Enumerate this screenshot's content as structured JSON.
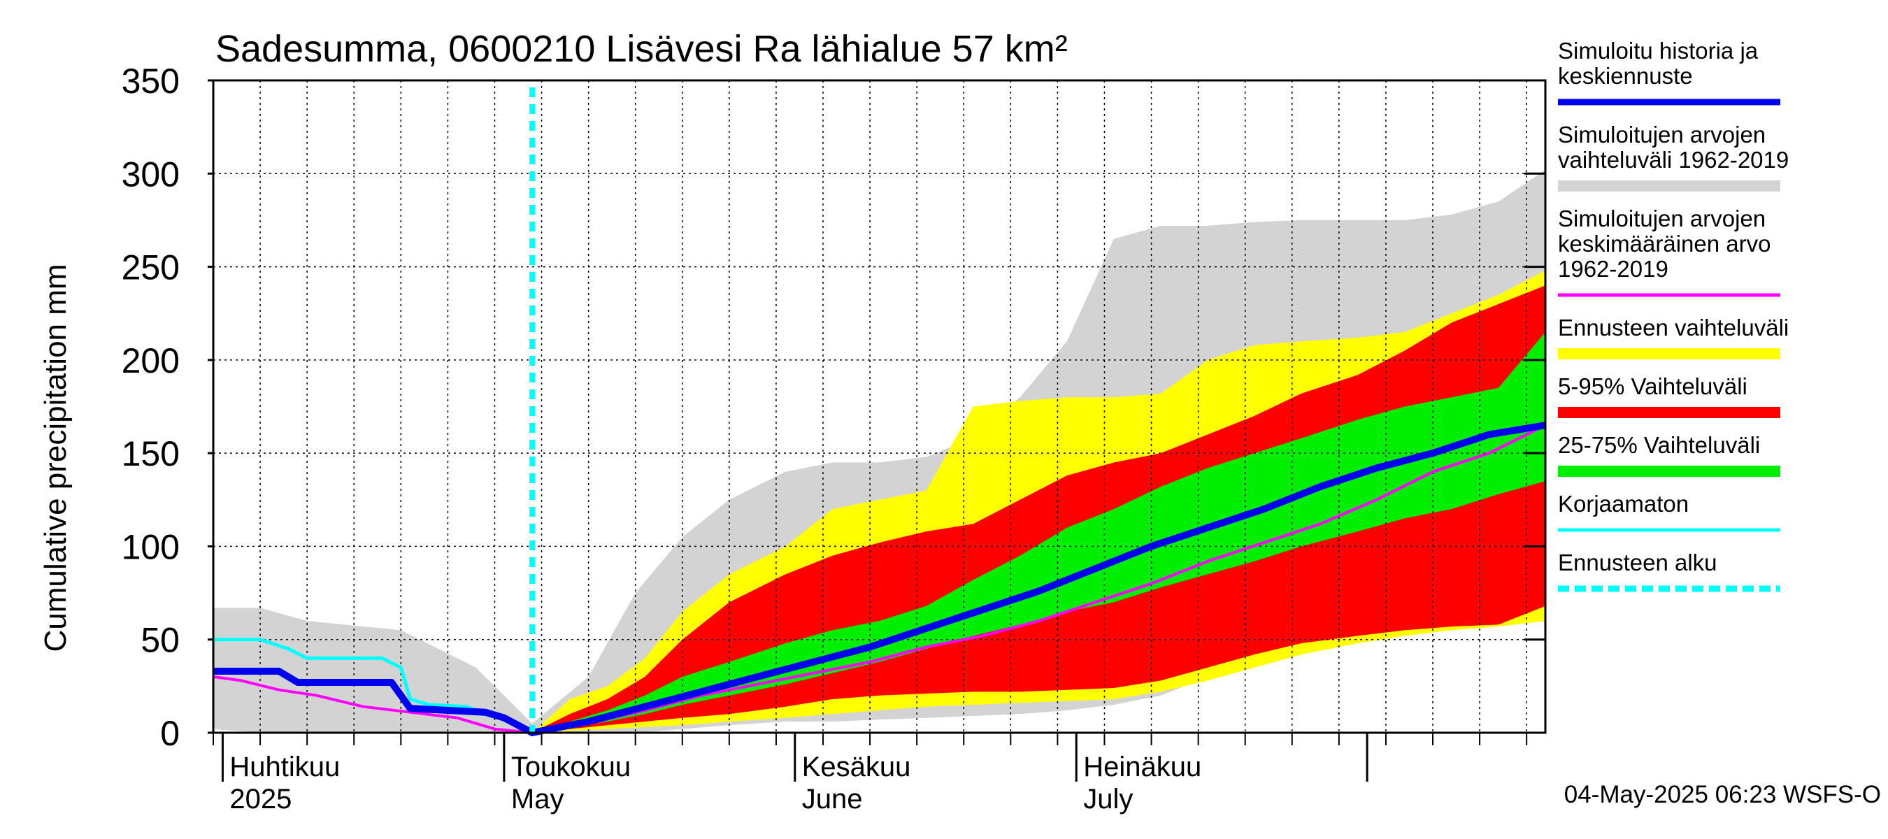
{
  "chart_data": {
    "type": "area",
    "title": "Sadesumma, 0600210 Lisävesi Ra lähialue 57 km²",
    "ylabel": "Cumulative precipitation   mm",
    "ylim": [
      0,
      350
    ],
    "yticks": [
      "0",
      "50",
      "100",
      "150",
      "200",
      "250",
      "300",
      "350"
    ],
    "xlim": [
      "2025-03-31",
      "2025-08-20"
    ],
    "grid": true,
    "forecast_start": "2025-05-04",
    "month_labels": [
      {
        "top": "Huhtikuu",
        "bottom": "2025",
        "date": "2025-04-01"
      },
      {
        "top": "Toukokuu",
        "bottom": "May",
        "date": "2025-05-01"
      },
      {
        "top": "Kesäkuu",
        "bottom": "June",
        "date": "2025-06-01"
      },
      {
        "top": "Heinäkuu",
        "bottom": "July",
        "date": "2025-07-01"
      }
    ],
    "series": [
      {
        "name": "Simuloitujen arvojen vaihteluväli 1962-2019",
        "kind": "band",
        "color": "#d3d3d3",
        "x": [
          "2025-03-31",
          "2025-04-05",
          "2025-04-10",
          "2025-04-20",
          "2025-04-28",
          "2025-05-04",
          "2025-05-10",
          "2025-05-15",
          "2025-05-20",
          "2025-05-25",
          "2025-05-31",
          "2025-06-05",
          "2025-06-10",
          "2025-06-15",
          "2025-06-20",
          "2025-06-25",
          "2025-06-30",
          "2025-07-05",
          "2025-07-10",
          "2025-07-15",
          "2025-07-20",
          "2025-07-25",
          "2025-07-31",
          "2025-08-05",
          "2025-08-10",
          "2025-08-15",
          "2025-08-20"
        ],
        "upper": [
          67,
          67,
          60,
          55,
          35,
          5,
          30,
          75,
          105,
          125,
          140,
          145,
          145,
          148,
          158,
          180,
          210,
          265,
          272,
          272,
          274,
          275,
          275,
          275,
          278,
          285,
          302
        ],
        "lower": [
          2,
          0,
          0,
          0,
          0,
          0,
          0,
          0,
          2,
          4,
          6,
          6,
          7,
          8,
          9,
          10,
          12,
          15,
          20,
          30,
          45,
          50,
          52,
          55,
          56,
          57,
          60
        ]
      },
      {
        "name": "Ennusteen vaihteluväli",
        "kind": "band",
        "color": "#ffff00",
        "x": [
          "2025-05-04",
          "2025-05-08",
          "2025-05-12",
          "2025-05-16",
          "2025-05-20",
          "2025-05-25",
          "2025-05-31",
          "2025-06-05",
          "2025-06-10",
          "2025-06-15",
          "2025-06-20",
          "2025-06-25",
          "2025-06-30",
          "2025-07-05",
          "2025-07-10",
          "2025-07-15",
          "2025-07-20",
          "2025-07-25",
          "2025-07-31",
          "2025-08-05",
          "2025-08-10",
          "2025-08-15",
          "2025-08-20"
        ],
        "upper": [
          0,
          18,
          25,
          40,
          65,
          85,
          100,
          120,
          125,
          130,
          175,
          178,
          180,
          180,
          182,
          200,
          208,
          210,
          212,
          215,
          225,
          235,
          248
        ],
        "lower": [
          0,
          1,
          2,
          3,
          4,
          6,
          8,
          10,
          12,
          14,
          15,
          16,
          17,
          18,
          22,
          28,
          35,
          42,
          48,
          52,
          55,
          57,
          60
        ]
      },
      {
        "name": "5-95% Vaihteluväli",
        "kind": "band",
        "color": "#ff0000",
        "x": [
          "2025-05-04",
          "2025-05-08",
          "2025-05-12",
          "2025-05-16",
          "2025-05-20",
          "2025-05-25",
          "2025-05-31",
          "2025-06-05",
          "2025-06-10",
          "2025-06-15",
          "2025-06-20",
          "2025-06-25",
          "2025-06-30",
          "2025-07-05",
          "2025-07-10",
          "2025-07-15",
          "2025-07-20",
          "2025-07-25",
          "2025-07-31",
          "2025-08-05",
          "2025-08-10",
          "2025-08-15",
          "2025-08-20"
        ],
        "upper": [
          0,
          10,
          18,
          30,
          50,
          70,
          85,
          95,
          102,
          108,
          112,
          125,
          138,
          145,
          150,
          160,
          170,
          182,
          192,
          205,
          220,
          230,
          240
        ],
        "lower": [
          0,
          2,
          4,
          6,
          8,
          10,
          14,
          18,
          20,
          21,
          22,
          22,
          23,
          24,
          28,
          35,
          42,
          48,
          52,
          55,
          57,
          58,
          68
        ]
      },
      {
        "name": "25-75% Vaihteluväli",
        "kind": "band",
        "color": "#00ee00",
        "x": [
          "2025-05-04",
          "2025-05-08",
          "2025-05-12",
          "2025-05-16",
          "2025-05-20",
          "2025-05-25",
          "2025-05-31",
          "2025-06-05",
          "2025-06-10",
          "2025-06-15",
          "2025-06-20",
          "2025-06-25",
          "2025-06-30",
          "2025-07-05",
          "2025-07-10",
          "2025-07-15",
          "2025-07-20",
          "2025-07-25",
          "2025-07-31",
          "2025-08-05",
          "2025-08-10",
          "2025-08-15",
          "2025-08-20"
        ],
        "upper": [
          0,
          6,
          12,
          20,
          30,
          38,
          48,
          55,
          60,
          68,
          82,
          95,
          110,
          120,
          132,
          142,
          150,
          158,
          168,
          175,
          180,
          185,
          215
        ],
        "lower": [
          0,
          3,
          6,
          10,
          15,
          20,
          26,
          32,
          38,
          45,
          52,
          58,
          65,
          70,
          78,
          85,
          92,
          100,
          108,
          115,
          120,
          128,
          135
        ]
      },
      {
        "name": "Simuloitujen arvojen keskimääräinen arvo 1962-2019",
        "kind": "line",
        "color": "#ff00ff",
        "x": [
          "2025-03-31",
          "2025-04-03",
          "2025-04-07",
          "2025-04-11",
          "2025-04-16",
          "2025-04-21",
          "2025-04-26",
          "2025-04-30",
          "2025-05-04",
          "2025-05-10",
          "2025-05-16",
          "2025-05-22",
          "2025-05-28",
          "2025-06-03",
          "2025-06-09",
          "2025-06-15",
          "2025-06-21",
          "2025-06-27",
          "2025-07-03",
          "2025-07-09",
          "2025-07-15",
          "2025-07-21",
          "2025-07-27",
          "2025-08-02",
          "2025-08-08",
          "2025-08-14",
          "2025-08-20"
        ],
        "y": [
          30,
          28,
          23,
          20,
          14,
          11,
          8,
          2,
          0,
          5,
          12,
          20,
          26,
          32,
          38,
          46,
          52,
          60,
          70,
          80,
          92,
          102,
          112,
          125,
          140,
          150,
          165
        ]
      },
      {
        "name": "Korjaamaton",
        "kind": "line",
        "color": "#00ffff",
        "x": [
          "2025-03-31",
          "2025-04-05",
          "2025-04-08",
          "2025-04-10",
          "2025-04-14",
          "2025-04-18",
          "2025-04-20",
          "2025-04-21",
          "2025-04-23",
          "2025-04-27",
          "2025-04-29",
          "2025-05-01",
          "2025-05-04"
        ],
        "y": [
          50,
          50,
          45,
          40,
          40,
          40,
          35,
          18,
          15,
          14,
          10,
          8,
          0
        ]
      },
      {
        "name": "Simuloitu historia ja keskiennuste",
        "kind": "line",
        "color": "#0000ee",
        "x": [
          "2025-03-31",
          "2025-04-07",
          "2025-04-09",
          "2025-04-14",
          "2025-04-19",
          "2025-04-21",
          "2025-04-25",
          "2025-04-29",
          "2025-05-01",
          "2025-05-04",
          "2025-05-10",
          "2025-05-16",
          "2025-05-22",
          "2025-05-28",
          "2025-06-03",
          "2025-06-09",
          "2025-06-15",
          "2025-06-21",
          "2025-06-27",
          "2025-07-03",
          "2025-07-09",
          "2025-07-15",
          "2025-07-21",
          "2025-07-27",
          "2025-08-02",
          "2025-08-08",
          "2025-08-14",
          "2025-08-20"
        ],
        "y": [
          33,
          33,
          27,
          27,
          27,
          13,
          12,
          11,
          8,
          0,
          6,
          14,
          22,
          30,
          38,
          46,
          56,
          66,
          76,
          88,
          100,
          110,
          120,
          132,
          142,
          150,
          160,
          165
        ]
      }
    ],
    "legend": [
      {
        "label": "Simuloitu historia ja keskiennuste",
        "color": "#0000ee",
        "style": "line"
      },
      {
        "label": "Simuloitujen arvojen vaihteluväli 1962-2019",
        "color": "#d3d3d3",
        "style": "band"
      },
      {
        "label": "Simuloitujen arvojen keskimääräinen arvo 1962-2019",
        "color": "#ff00ff",
        "style": "line"
      },
      {
        "label": "Ennusteen vaihteluväli",
        "color": "#ffff00",
        "style": "band"
      },
      {
        "label": "5-95% Vaihteluväli",
        "color": "#ff0000",
        "style": "band"
      },
      {
        "label": "25-75% Vaihteluväli",
        "color": "#00ee00",
        "style": "band"
      },
      {
        "label": "Korjaamaton",
        "color": "#00ffff",
        "style": "line"
      },
      {
        "label": "Ennusteen alku",
        "color": "#00ffff",
        "style": "dashed"
      }
    ],
    "legend_position": "right",
    "legend_lines": [
      [
        "Simuloitu historia ja",
        "keskiennuste"
      ],
      [
        "Simuloitujen arvojen",
        "vaihteluväli 1962-2019"
      ],
      [
        "Simuloitujen arvojen",
        "keskimääräinen arvo",
        "   1962-2019"
      ],
      [
        "Ennusteen vaihteluväli"
      ],
      [
        "5-95% Vaihteluväli"
      ],
      [
        "25-75% Vaihteluväli"
      ],
      [
        "Korjaamaton"
      ],
      [
        "Ennusteen alku"
      ]
    ],
    "timestamp": "04-May-2025 06:23 WSFS-O"
  }
}
